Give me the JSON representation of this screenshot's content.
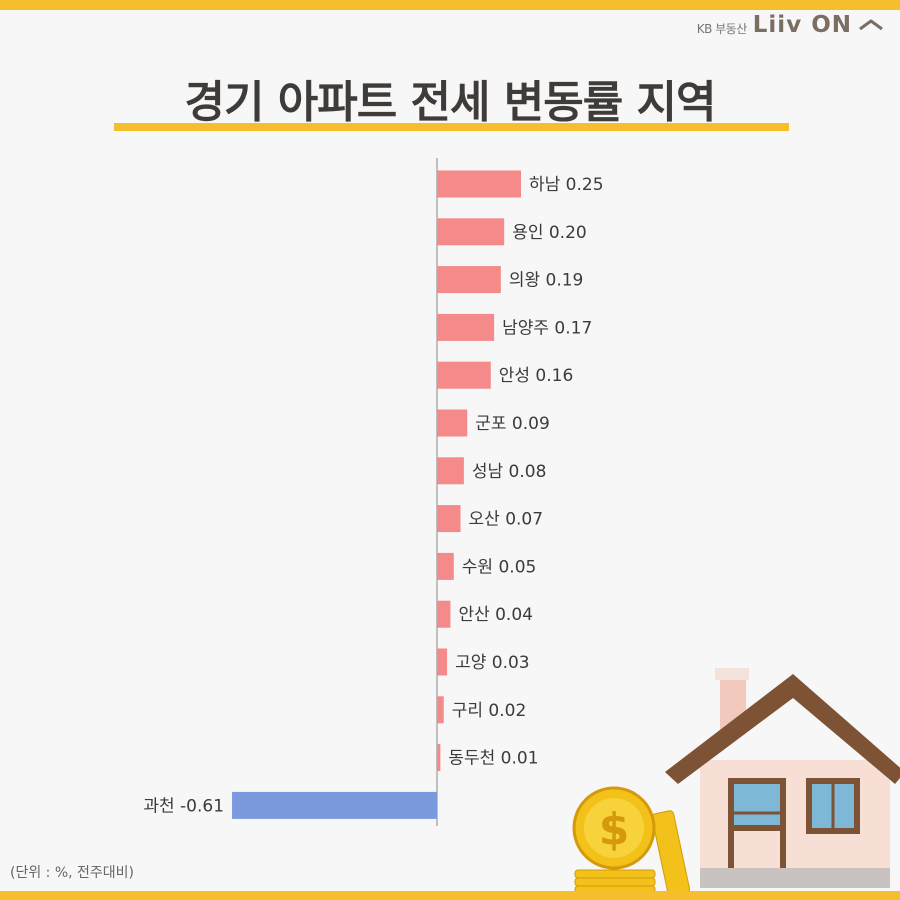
{
  "brand": {
    "sub": "KB 부동산",
    "name": "Liiv ON"
  },
  "title": "경기 아파트 전세 변동률 지역",
  "footnote": "(단위 : %, 전주대비)",
  "colors": {
    "positive": "#f48a8a",
    "negative": "#7b99dd",
    "accent": "#f6be2c",
    "title": "#3f3b39"
  },
  "chart_data": {
    "type": "bar",
    "orientation": "horizontal",
    "categories": [
      "하남",
      "용인",
      "의왕",
      "남양주",
      "안성",
      "군포",
      "성남",
      "오산",
      "수원",
      "안산",
      "고양",
      "구리",
      "동두천",
      "과천"
    ],
    "values": [
      0.25,
      0.2,
      0.19,
      0.17,
      0.16,
      0.09,
      0.08,
      0.07,
      0.05,
      0.04,
      0.03,
      0.02,
      0.01,
      -0.61
    ],
    "labels": [
      "하남 0.25",
      "용인 0.20",
      "의왕 0.19",
      "남양주 0.17",
      "안성 0.16",
      "군포 0.09",
      "성남 0.08",
      "오산 0.07",
      "수원 0.05",
      "안산 0.04",
      "고양 0.03",
      "구리 0.02",
      "동두천 0.01",
      "과천 -0.61"
    ],
    "unit": "%",
    "title": "경기 아파트 전세 변동률 지역"
  }
}
